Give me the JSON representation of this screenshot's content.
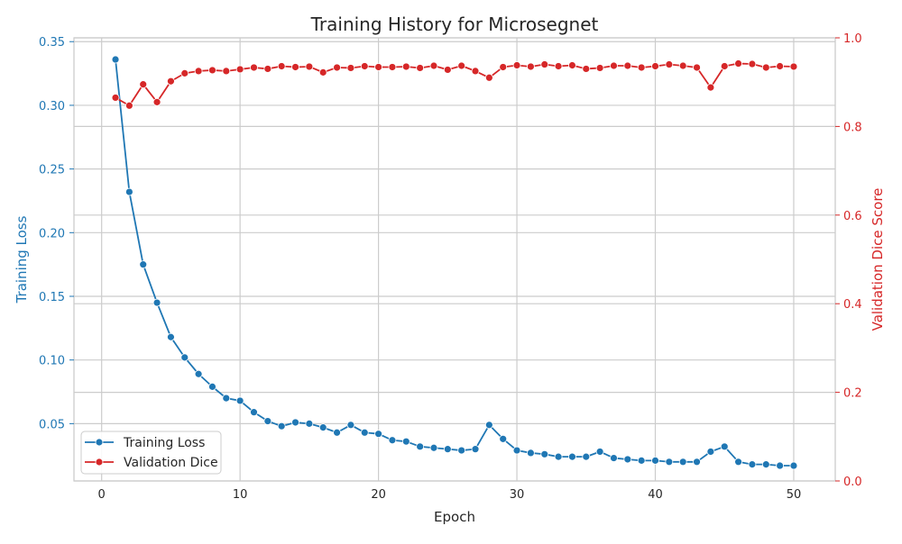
{
  "chart_data": {
    "type": "line",
    "title": "Training History for Microsegnet",
    "xlabel": "Epoch",
    "ylabel_left": "Training Loss",
    "ylabel_right": "Validation Dice Score",
    "xlim": [
      -2,
      53
    ],
    "ylim_left": [
      0.005,
      0.353
    ],
    "ylim_right": [
      0,
      1.0
    ],
    "x_ticks": [
      0,
      10,
      20,
      30,
      40,
      50
    ],
    "y_left_ticks": [
      0.05,
      0.1,
      0.15,
      0.2,
      0.25,
      0.3,
      0.35
    ],
    "y_left_tick_labels": [
      "0.05",
      "0.10",
      "0.15",
      "0.20",
      "0.25",
      "0.30",
      "0.35"
    ],
    "y_right_ticks": [
      0.0,
      0.2,
      0.4,
      0.6,
      0.8,
      1.0
    ],
    "y_right_tick_labels": [
      "0.0",
      "0.2",
      "0.4",
      "0.6",
      "0.8",
      "1.0"
    ],
    "grid": true,
    "legend_position": "lower-left",
    "x": [
      1,
      2,
      3,
      4,
      5,
      6,
      7,
      8,
      9,
      10,
      11,
      12,
      13,
      14,
      15,
      16,
      17,
      18,
      19,
      20,
      21,
      22,
      23,
      24,
      25,
      26,
      27,
      28,
      29,
      30,
      31,
      32,
      33,
      34,
      35,
      36,
      37,
      38,
      39,
      40,
      41,
      42,
      43,
      44,
      45,
      46,
      47,
      48,
      49,
      50
    ],
    "series": [
      {
        "name": "Training Loss",
        "axis": "left",
        "color": "#1f77b4",
        "values": [
          0.336,
          0.232,
          0.175,
          0.145,
          0.118,
          0.102,
          0.089,
          0.079,
          0.07,
          0.068,
          0.059,
          0.052,
          0.048,
          0.051,
          0.05,
          0.047,
          0.043,
          0.049,
          0.043,
          0.042,
          0.037,
          0.036,
          0.032,
          0.031,
          0.03,
          0.029,
          0.03,
          0.049,
          0.038,
          0.029,
          0.027,
          0.026,
          0.024,
          0.024,
          0.024,
          0.028,
          0.023,
          0.022,
          0.021,
          0.021,
          0.02,
          0.02,
          0.02,
          0.028,
          0.032,
          0.02,
          0.018,
          0.018,
          0.017,
          0.017
        ]
      },
      {
        "name": "Validation Dice",
        "axis": "right",
        "color": "#d62728",
        "values": [
          0.865,
          0.847,
          0.895,
          0.855,
          0.902,
          0.92,
          0.925,
          0.927,
          0.925,
          0.929,
          0.933,
          0.93,
          0.936,
          0.934,
          0.935,
          0.922,
          0.933,
          0.932,
          0.936,
          0.934,
          0.934,
          0.935,
          0.932,
          0.937,
          0.928,
          0.937,
          0.925,
          0.91,
          0.934,
          0.938,
          0.935,
          0.94,
          0.936,
          0.938,
          0.93,
          0.932,
          0.937,
          0.937,
          0.933,
          0.936,
          0.94,
          0.937,
          0.933,
          0.888,
          0.936,
          0.942,
          0.941,
          0.933,
          0.936,
          0.935
        ]
      }
    ]
  }
}
